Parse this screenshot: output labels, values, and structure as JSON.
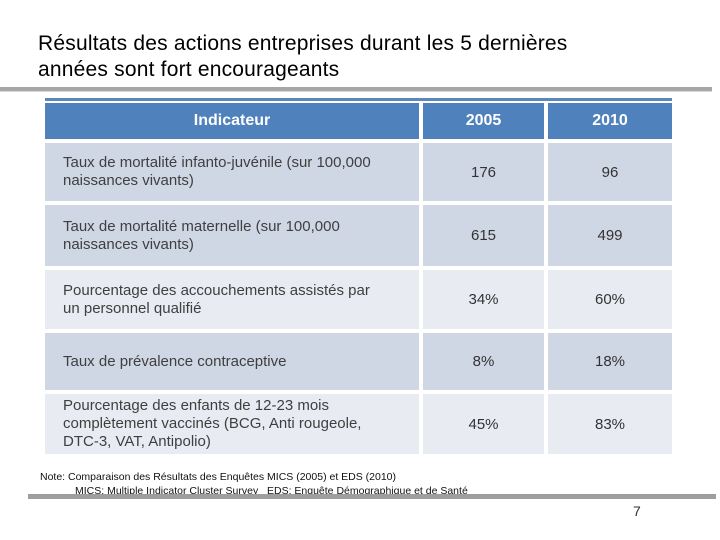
{
  "slide": {
    "title": "Résultats des actions entreprises durant les 5 dernières\nannées sont fort encourageants",
    "page_number": "7"
  },
  "table": {
    "headers": [
      "Indicateur",
      "2005",
      "2010"
    ],
    "rows": [
      {
        "indicator": "Taux de mortalité infanto-juvénile (sur 100,000\nnaissances vivants)",
        "v2005": "176",
        "v2010": "96"
      },
      {
        "indicator": "Taux de mortalité maternelle (sur 100,000\nnaissances vivants)",
        "v2005": "615",
        "v2010": "499"
      },
      {
        "indicator": "Pourcentage des accouchements assistés par\nun personnel qualifié",
        "v2005": "34%",
        "v2010": "60%"
      },
      {
        "indicator": "Taux de prévalence contraceptive",
        "v2005": "8%",
        "v2010": "18%"
      },
      {
        "indicator": "Pourcentage des enfants de 12-23 mois\ncomplètement vaccinés (BCG, Anti rougeole,\nDTC-3, VAT, Antipolio)",
        "v2005": "45%",
        "v2010": "83%"
      }
    ]
  },
  "note": {
    "line1": "Note: Comparaison des Résultats des Enquêtes MICS (2005) et EDS (2010)",
    "line2": "MICS: Multiple Indicator Cluster Survey   EDS: Enquête Démographique et de Santé"
  },
  "colors": {
    "header_blue": "#4f81bd",
    "band_medium": "#cfd6e4",
    "band_light": "#e9ebf2",
    "title_rule_gray": "#a6a6a6",
    "footer_rule_gray": "#9e9e9e"
  }
}
